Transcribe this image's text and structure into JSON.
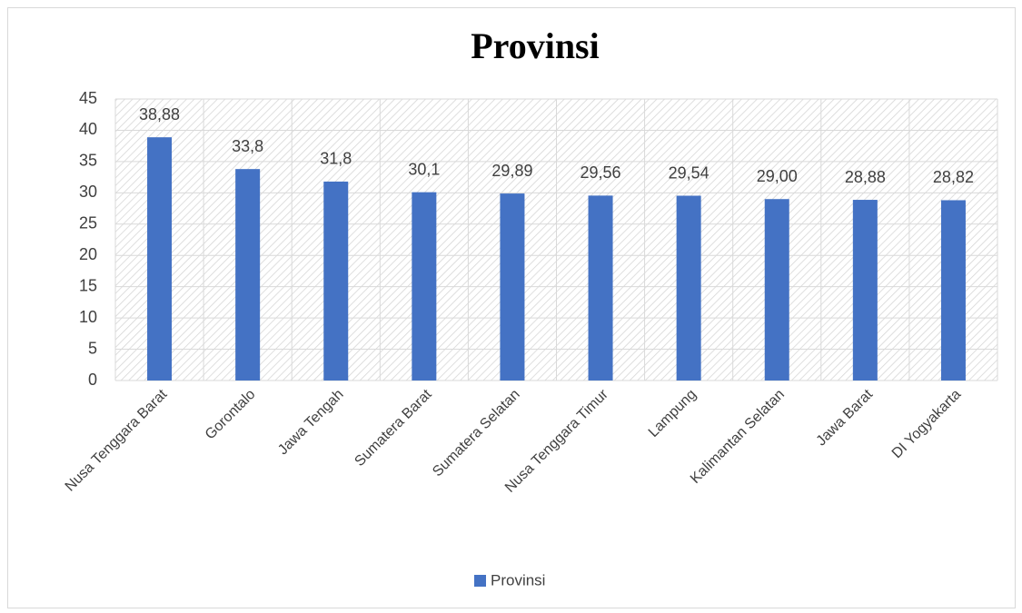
{
  "chart_data": {
    "type": "bar",
    "title": "Provinsi",
    "categories": [
      "Nusa Tenggara Barat",
      "Gorontalo",
      "Jawa Tengah",
      "Sumatera Barat",
      "Sumatera Selatan",
      "Nusa Tenggara Timur",
      "Lampung",
      "Kalimantan Selatan",
      "Jawa Barat",
      "DI Yogyakarta"
    ],
    "series": [
      {
        "name": "Provinsi",
        "color": "#4472c4",
        "values": [
          38.88,
          33.8,
          31.8,
          30.1,
          29.89,
          29.56,
          29.54,
          29.0,
          28.88,
          28.82
        ],
        "value_labels": [
          "38,88",
          "33,8",
          "31,8",
          "30,1",
          "29,89",
          "29,56",
          "29,54",
          "29,00",
          "28,88",
          "28,82"
        ]
      }
    ],
    "ylim": [
      0,
      45
    ],
    "yticks": [
      0,
      5,
      10,
      15,
      20,
      25,
      30,
      35,
      40,
      45
    ],
    "grid": true,
    "legend": "bottom"
  }
}
